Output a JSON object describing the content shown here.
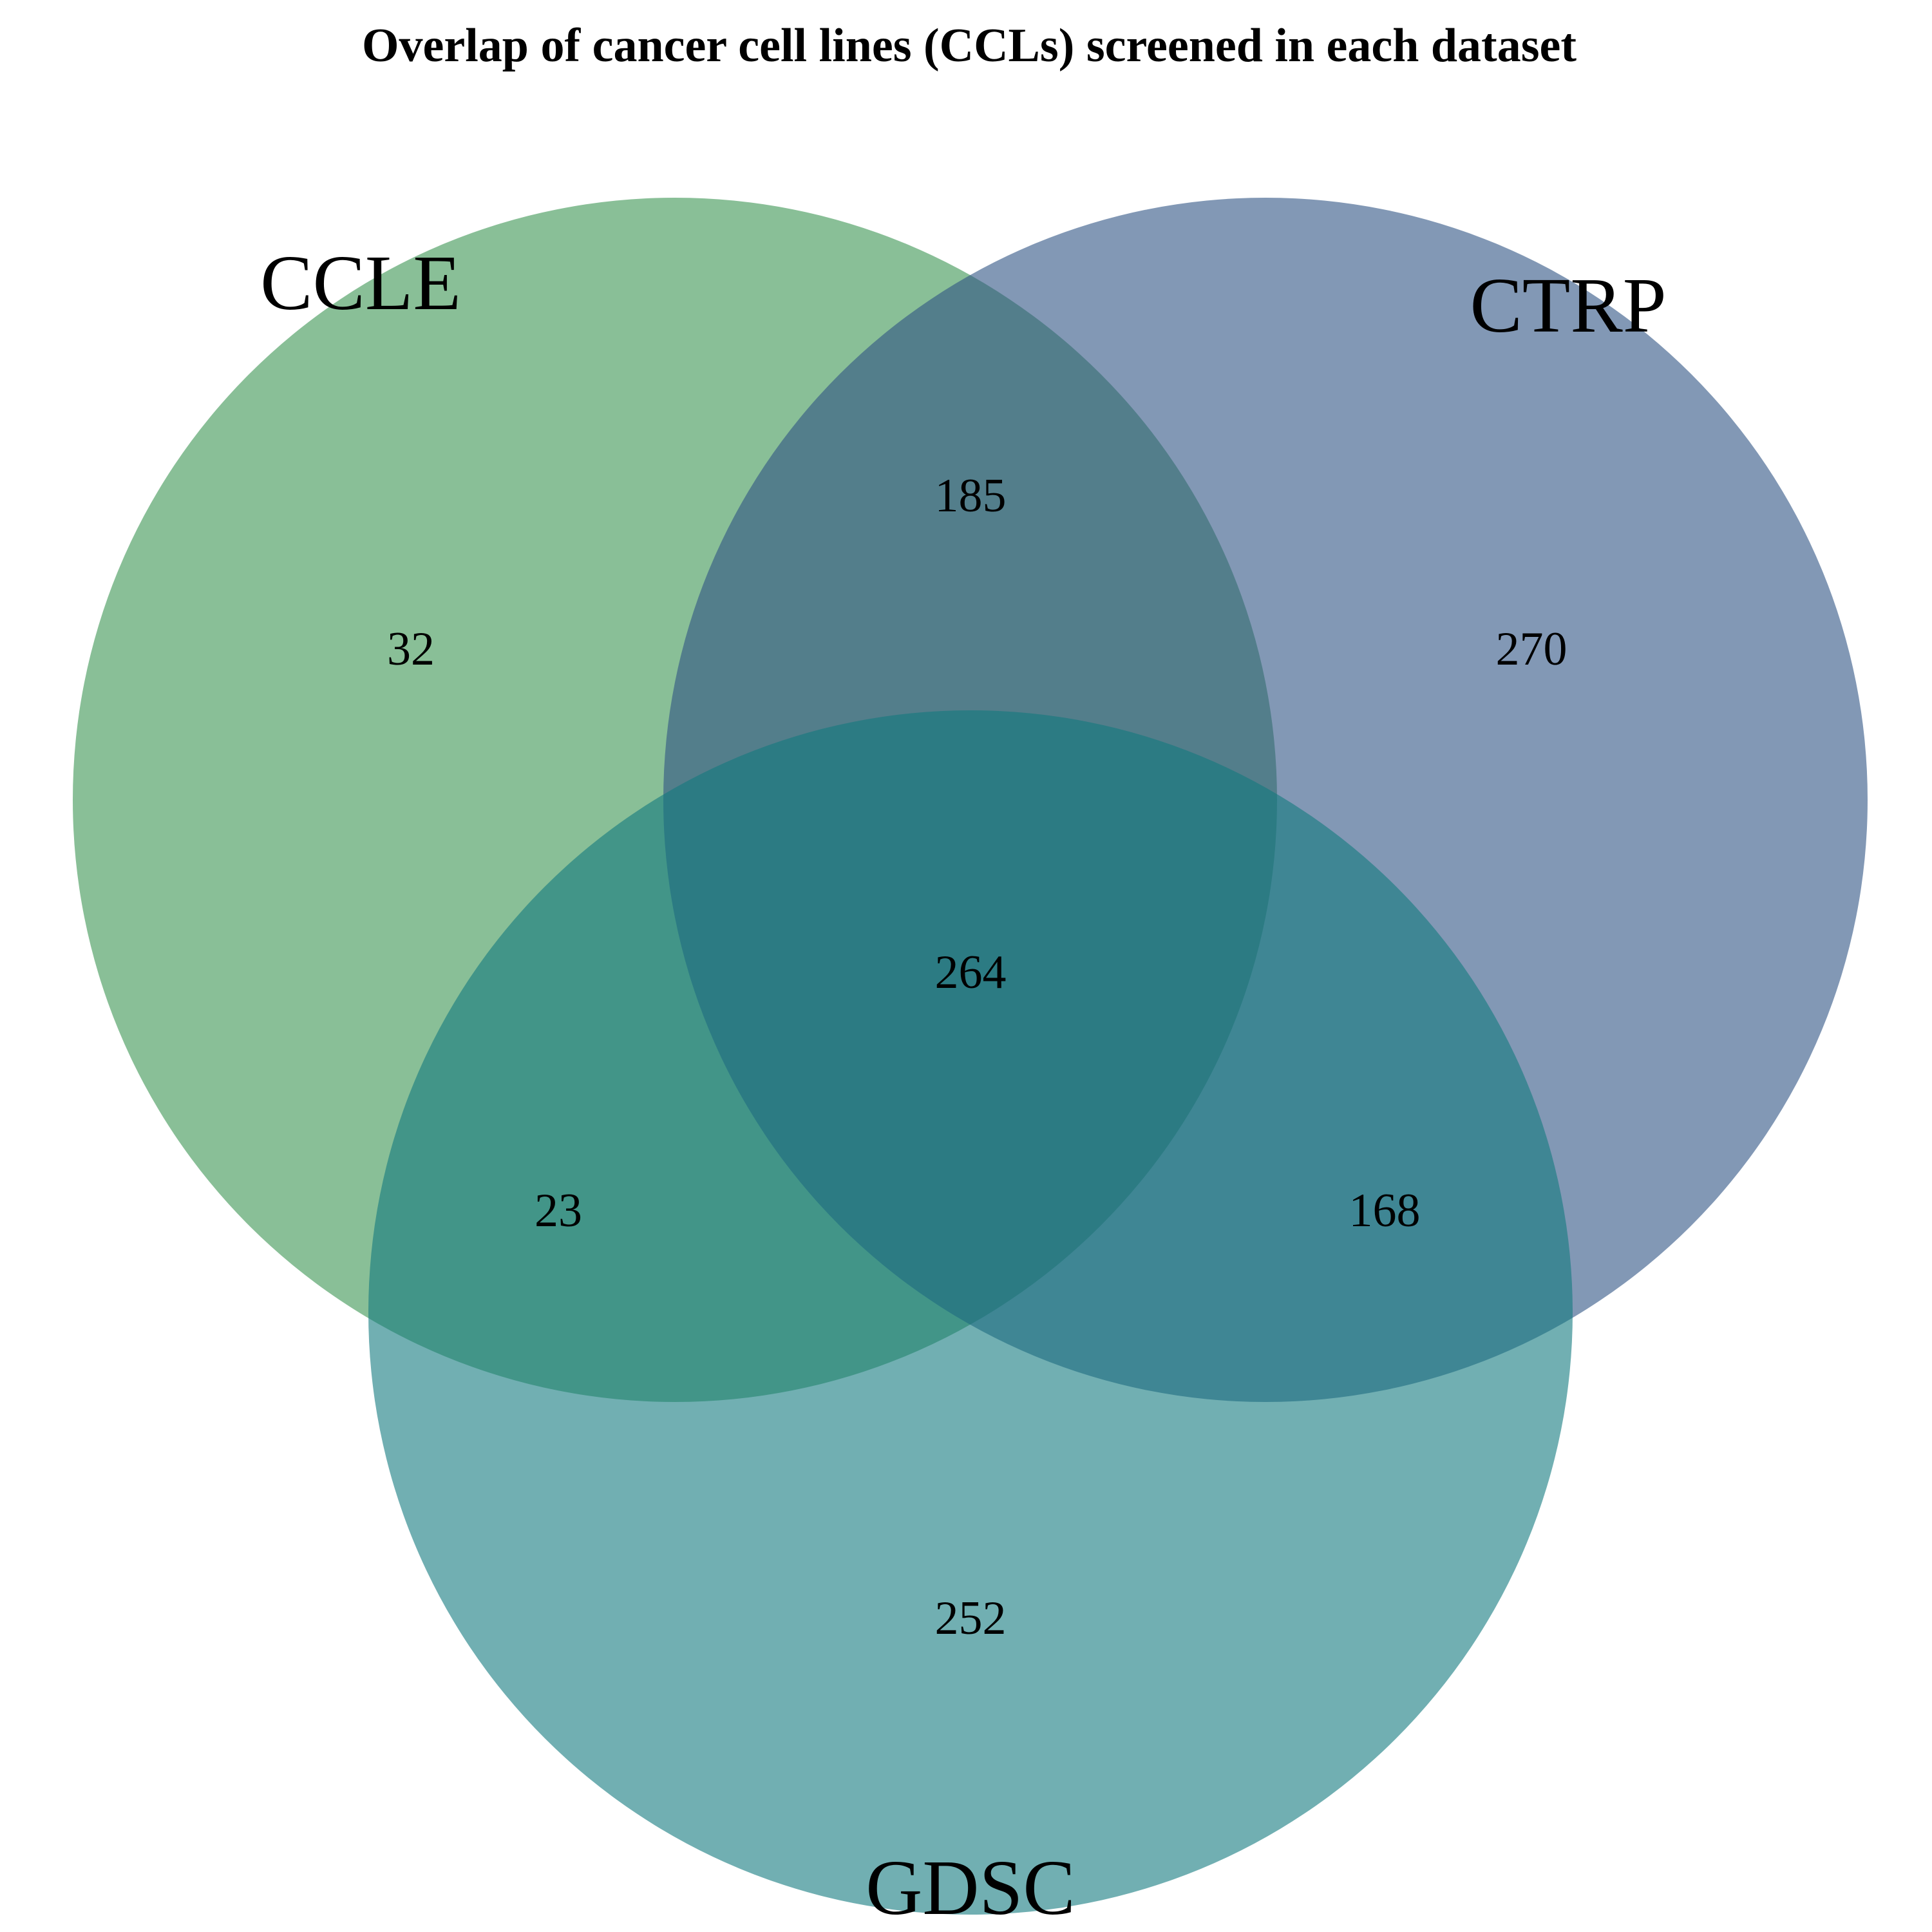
{
  "title": "Overlap of cancer cell lines (CCLs) screened in each dataset",
  "sets": [
    {
      "id": "ccle",
      "label": "CCLE",
      "color": "#3a9552"
    },
    {
      "id": "ctrp",
      "label": "CTRP",
      "color": "#2e5383"
    },
    {
      "id": "gdsc",
      "label": "GDSC",
      "color": "#137a7f"
    }
  ],
  "circle_opacity": 0.6,
  "regions": {
    "ccle_only": "32",
    "ctrp_only": "270",
    "gdsc_only": "252",
    "ccle_ctrp": "185",
    "ccle_gdsc": "23",
    "ctrp_gdsc": "168",
    "all_three": "264"
  }
}
